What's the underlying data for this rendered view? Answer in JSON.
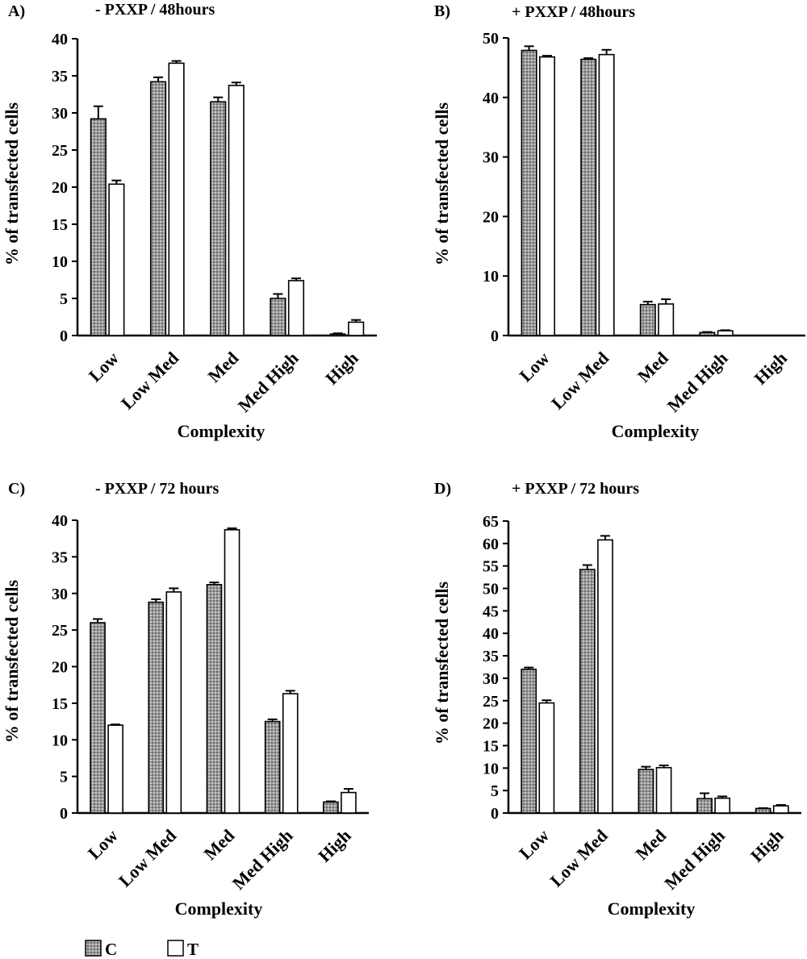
{
  "colors": {
    "C_fill": "#9a9a9a",
    "T_fill": "#ffffff",
    "stroke": "#000000"
  },
  "legend": {
    "items": [
      {
        "key": "C",
        "label": "C"
      },
      {
        "key": "T",
        "label": "T"
      }
    ]
  },
  "chart_data": [
    {
      "type": "bar",
      "panel": "A)",
      "title": "- PXXP / 48hours",
      "xlabel": "Complexity",
      "ylabel": "% of transfected cells",
      "categories": [
        "Low",
        "Low Med",
        "Med",
        "Med High",
        "High"
      ],
      "ylim": [
        0,
        40
      ],
      "yticks": [
        0,
        5,
        10,
        15,
        20,
        25,
        30,
        35,
        40
      ],
      "series": [
        {
          "name": "C",
          "values": [
            29.2,
            34.2,
            31.5,
            5.0,
            0.2
          ],
          "errors": [
            1.7,
            0.6,
            0.6,
            0.6,
            0.1
          ]
        },
        {
          "name": "T",
          "values": [
            20.4,
            36.7,
            33.7,
            7.4,
            1.8
          ],
          "errors": [
            0.5,
            0.3,
            0.4,
            0.3,
            0.3
          ]
        }
      ]
    },
    {
      "type": "bar",
      "panel": "B)",
      "title": "+ PXXP / 48hours",
      "xlabel": "Complexity",
      "ylabel": "% of transfected cells",
      "categories": [
        "Low",
        "Low Med",
        "Med",
        "Med High",
        "High"
      ],
      "ylim": [
        0,
        50
      ],
      "yticks": [
        0,
        10,
        20,
        30,
        40,
        50
      ],
      "series": [
        {
          "name": "C",
          "values": [
            47.9,
            46.4,
            5.2,
            0.5,
            0
          ],
          "errors": [
            0.7,
            0.2,
            0.5,
            0.1,
            0
          ]
        },
        {
          "name": "T",
          "values": [
            46.8,
            47.2,
            5.3,
            0.8,
            0
          ],
          "errors": [
            0.2,
            0.8,
            0.8,
            0.1,
            0
          ]
        }
      ]
    },
    {
      "type": "bar",
      "panel": "C)",
      "title": "- PXXP / 72 hours",
      "xlabel": "Complexity",
      "ylabel": "% of transfected cells",
      "categories": [
        "Low",
        "Low Med",
        "Med",
        "Med High",
        "High"
      ],
      "ylim": [
        0,
        40
      ],
      "yticks": [
        0,
        5,
        10,
        15,
        20,
        25,
        30,
        35,
        40
      ],
      "series": [
        {
          "name": "C",
          "values": [
            26.0,
            28.8,
            31.2,
            12.5,
            1.5
          ],
          "errors": [
            0.5,
            0.4,
            0.3,
            0.3,
            0.1
          ]
        },
        {
          "name": "T",
          "values": [
            12.0,
            30.2,
            38.7,
            16.3,
            2.8
          ],
          "errors": [
            0.1,
            0.5,
            0.2,
            0.4,
            0.5
          ]
        }
      ]
    },
    {
      "type": "bar",
      "panel": "D)",
      "title": "+ PXXP / 72 hours",
      "xlabel": "Complexity",
      "ylabel": "% of transfected cells",
      "categories": [
        "Low",
        "Low Med",
        "Med",
        "Med High",
        "High"
      ],
      "ylim": [
        0,
        65
      ],
      "yticks": [
        0,
        5,
        10,
        15,
        20,
        25,
        30,
        35,
        40,
        45,
        50,
        55,
        60,
        65
      ],
      "series": [
        {
          "name": "C",
          "values": [
            32.0,
            54.2,
            9.7,
            3.2,
            1.0
          ],
          "errors": [
            0.4,
            1.0,
            0.6,
            1.2,
            0.1
          ]
        },
        {
          "name": "T",
          "values": [
            24.5,
            60.8,
            10.1,
            3.3,
            1.6
          ],
          "errors": [
            0.6,
            0.9,
            0.5,
            0.4,
            0.2
          ]
        }
      ]
    }
  ]
}
